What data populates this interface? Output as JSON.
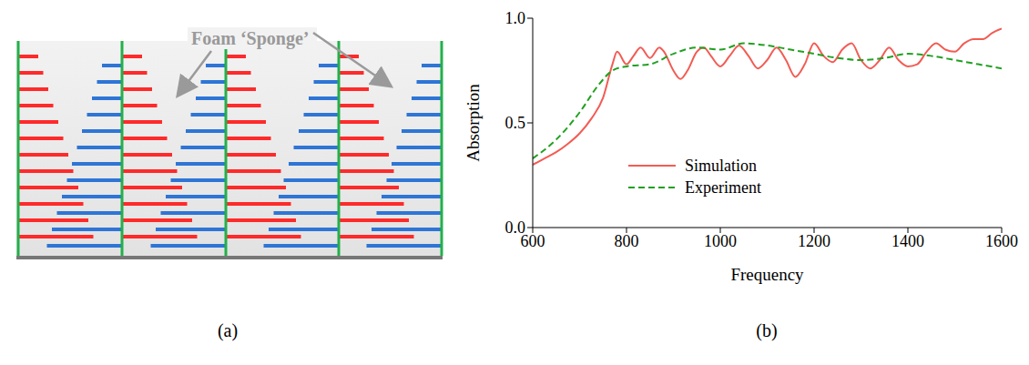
{
  "panel_labels": [
    "(a)",
    "(b)"
  ],
  "diagram": {
    "label": "Foam ‘Sponge’"
  },
  "chart_data": {
    "type": "line",
    "x_label": "Frequency",
    "y_label": "Absorption",
    "xlim": [
      600,
      1600
    ],
    "xticks": [
      600,
      800,
      1000,
      1200,
      1400,
      1600
    ],
    "ylim": [
      0,
      1
    ],
    "yticks": [
      {
        "value": 0,
        "label": "0.0"
      },
      {
        "value": 0.5,
        "label": "0.5"
      },
      {
        "value": 1,
        "label": "1.0"
      }
    ],
    "grid": false,
    "legend": "lower left",
    "series": [
      {
        "name": "Simulation",
        "color": "#f25c54",
        "line_style": "solid",
        "x": [
          600,
          625,
          650,
          675,
          700,
          725,
          750,
          770,
          780,
          800,
          815,
          830,
          850,
          870,
          880,
          900,
          915,
          930,
          950,
          965,
          980,
          1000,
          1020,
          1040,
          1060,
          1080,
          1100,
          1120,
          1140,
          1160,
          1180,
          1200,
          1220,
          1240,
          1260,
          1280,
          1300,
          1320,
          1340,
          1360,
          1380,
          1400,
          1420,
          1440,
          1460,
          1480,
          1500,
          1520,
          1540,
          1560,
          1580,
          1600
        ],
        "values": [
          0.3,
          0.33,
          0.36,
          0.4,
          0.45,
          0.52,
          0.62,
          0.78,
          0.84,
          0.78,
          0.82,
          0.86,
          0.81,
          0.86,
          0.84,
          0.75,
          0.71,
          0.75,
          0.84,
          0.86,
          0.82,
          0.77,
          0.82,
          0.87,
          0.82,
          0.76,
          0.8,
          0.86,
          0.8,
          0.72,
          0.78,
          0.88,
          0.82,
          0.79,
          0.85,
          0.88,
          0.8,
          0.76,
          0.8,
          0.86,
          0.8,
          0.77,
          0.78,
          0.84,
          0.88,
          0.85,
          0.84,
          0.88,
          0.9,
          0.9,
          0.93,
          0.95
        ]
      },
      {
        "name": "Experiment",
        "color": "#22a022",
        "line_style": "dashed",
        "x": [
          600,
          650,
          700,
          740,
          770,
          800,
          850,
          900,
          950,
          1000,
          1050,
          1100,
          1150,
          1200,
          1250,
          1300,
          1350,
          1400,
          1450,
          1500,
          1550,
          1600
        ],
        "values": [
          0.33,
          0.42,
          0.55,
          0.68,
          0.75,
          0.77,
          0.78,
          0.83,
          0.86,
          0.85,
          0.88,
          0.87,
          0.85,
          0.83,
          0.81,
          0.8,
          0.81,
          0.83,
          0.82,
          0.8,
          0.78,
          0.76
        ]
      }
    ]
  }
}
